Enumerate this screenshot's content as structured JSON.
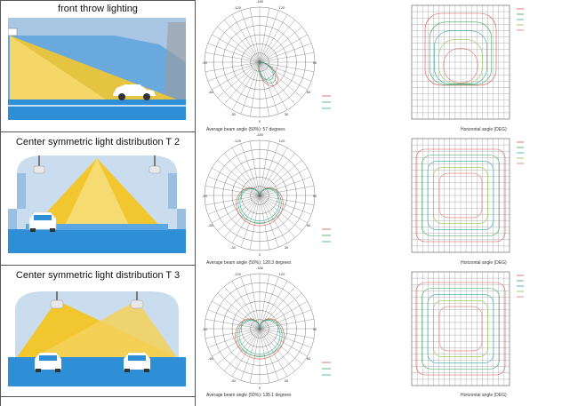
{
  "rows": [
    {
      "title": "front throw lighting",
      "polar_caption": "Average beam angle (50%): 57",
      "polar_caption_extra": "",
      "polar_unit": "degrees",
      "iso_caption": "Horizontal angle (DEG)"
    },
    {
      "title": "Center symmetric light distribution T 2",
      "polar_caption": "Average beam angle (50%): 120.3 degrees",
      "polar_caption_extra": "",
      "polar_unit": "",
      "iso_caption": "Horizontal angle (DEG)"
    },
    {
      "title": "Center symmetric light distribution T 3",
      "polar_caption": "Average beam angle (50%): 135.1 degrees",
      "polar_caption_extra": "",
      "polar_unit": "",
      "iso_caption": "Horizontal angle (DEG)"
    }
  ],
  "polar_ticks": [
    "-180",
    "-120",
    "-90",
    "-60",
    "-30",
    "0",
    "30",
    "60",
    "90",
    "120"
  ],
  "colors": {
    "tunnel_blue": "#2f8fd6",
    "tunnel_light": "#c9ddef",
    "beam_yellow": "#f2c62f",
    "grid": "#555555",
    "curve_red": "#d9534f",
    "curve_green": "#3aa655",
    "curve_teal": "#2ca7a0"
  },
  "icons": [
    "car-icon",
    "lamp-icon"
  ]
}
